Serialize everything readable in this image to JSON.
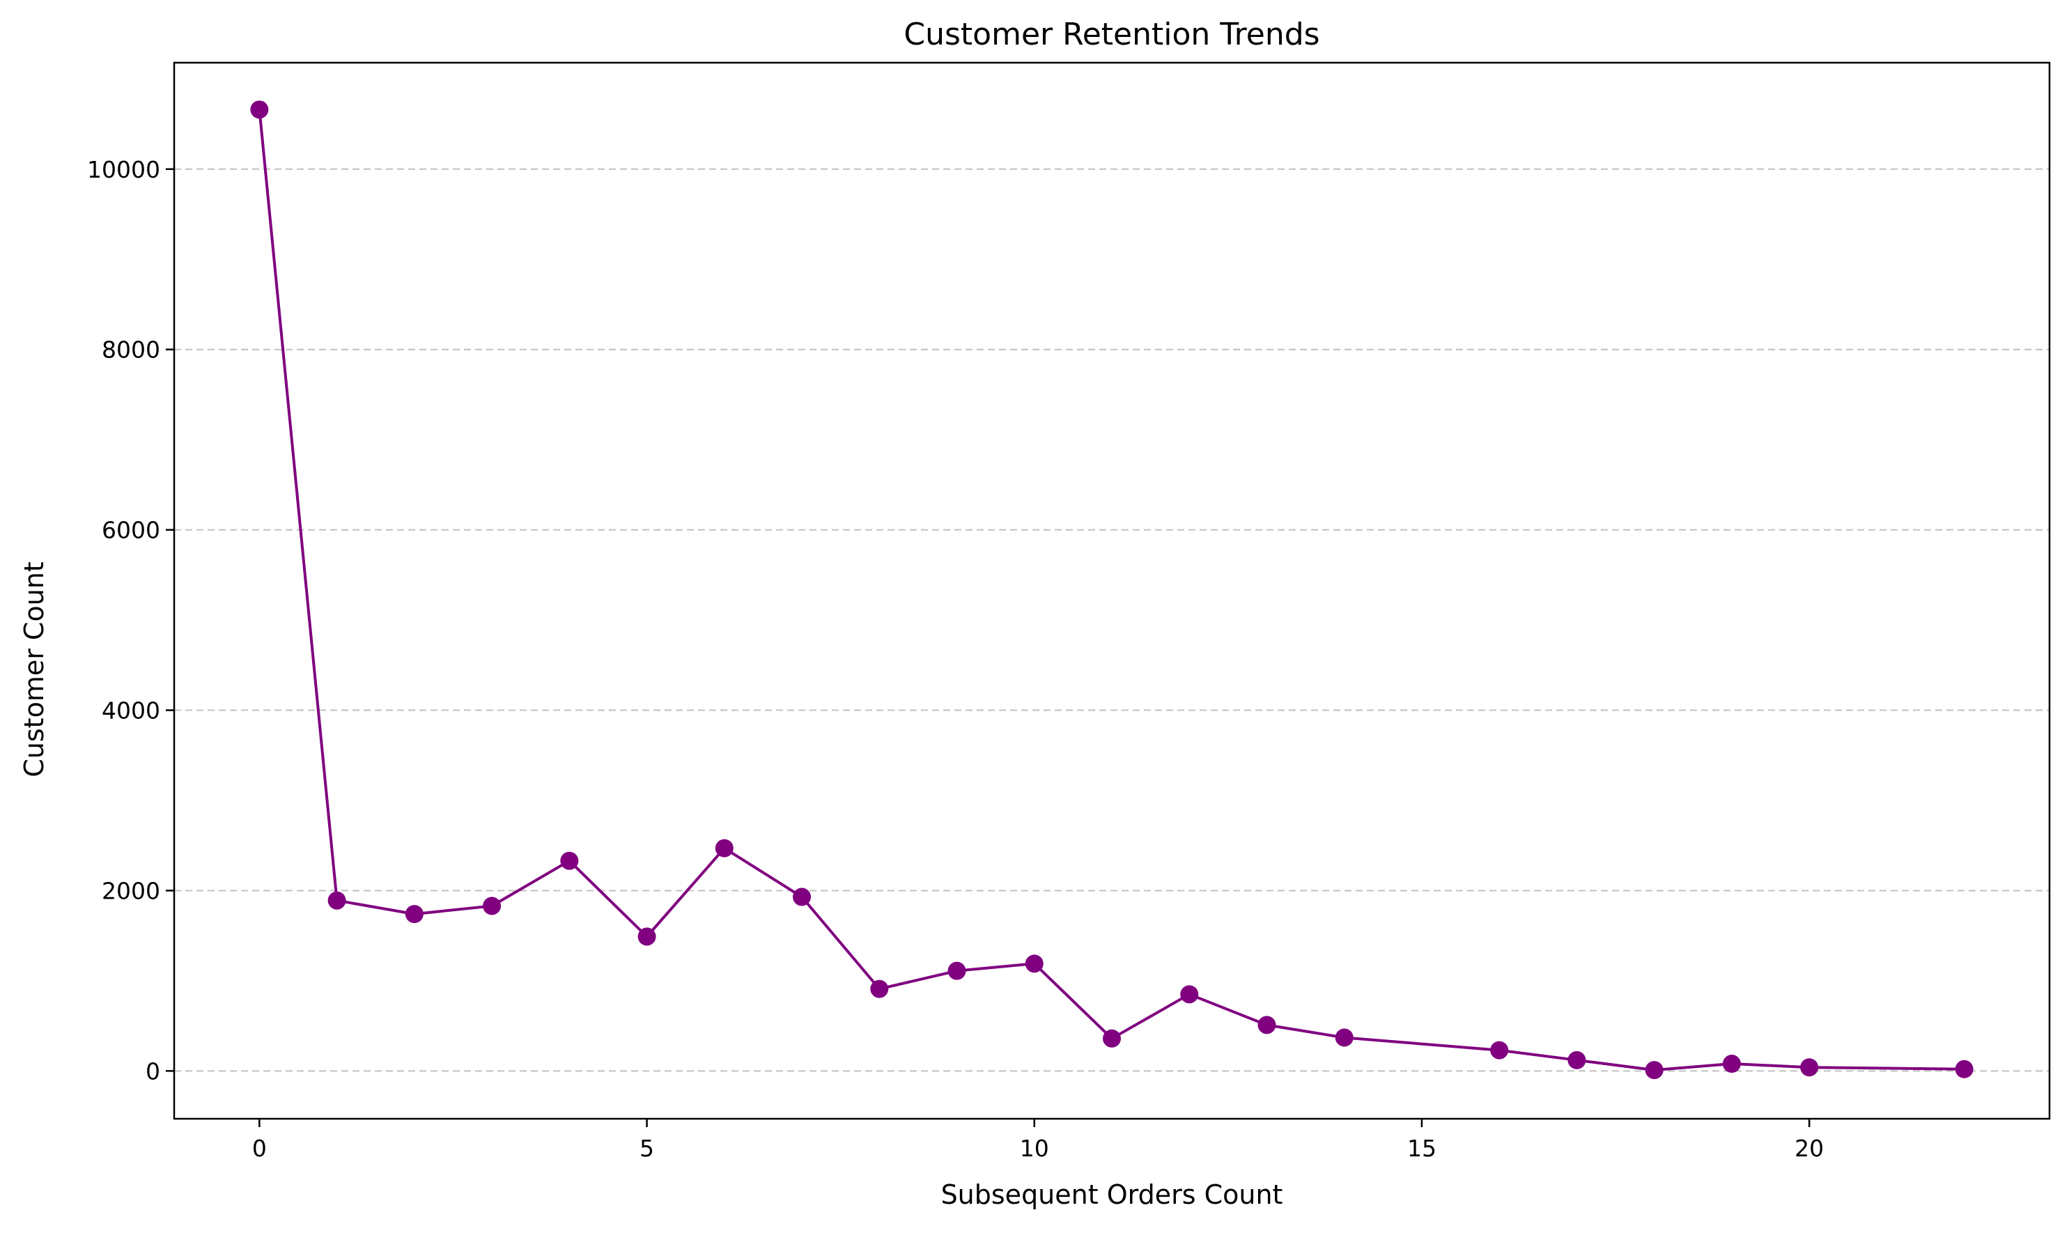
{
  "chart_data": {
    "type": "line",
    "title": "Customer Retention Trends",
    "xlabel": "Subsequent Orders Count",
    "ylabel": "Customer Count",
    "xlim": [
      -1.1,
      23.1
    ],
    "ylim": [
      -530,
      11180
    ],
    "x_ticks": [
      0,
      5,
      10,
      15,
      20
    ],
    "y_ticks": [
      0,
      2000,
      4000,
      6000,
      8000,
      10000
    ],
    "grid": {
      "axis": "y",
      "style": "dashed",
      "color": "#c0c0c0"
    },
    "series": [
      {
        "color": "#800080",
        "marker": "circle",
        "points": [
          {
            "x": 0,
            "y": 10660
          },
          {
            "x": 1,
            "y": 1890
          },
          {
            "x": 2,
            "y": 1740
          },
          {
            "x": 3,
            "y": 1830
          },
          {
            "x": 4,
            "y": 2330
          },
          {
            "x": 5,
            "y": 1490
          },
          {
            "x": 6,
            "y": 2470
          },
          {
            "x": 7,
            "y": 1930
          },
          {
            "x": 8,
            "y": 910
          },
          {
            "x": 9,
            "y": 1110
          },
          {
            "x": 10,
            "y": 1190
          },
          {
            "x": 11,
            "y": 360
          },
          {
            "x": 12,
            "y": 850
          },
          {
            "x": 13,
            "y": 510
          },
          {
            "x": 14,
            "y": 370
          },
          {
            "x": 16,
            "y": 230
          },
          {
            "x": 17,
            "y": 120
          },
          {
            "x": 18,
            "y": 10
          },
          {
            "x": 19,
            "y": 80
          },
          {
            "x": 20,
            "y": 40
          },
          {
            "x": 22,
            "y": 20
          }
        ]
      }
    ]
  }
}
